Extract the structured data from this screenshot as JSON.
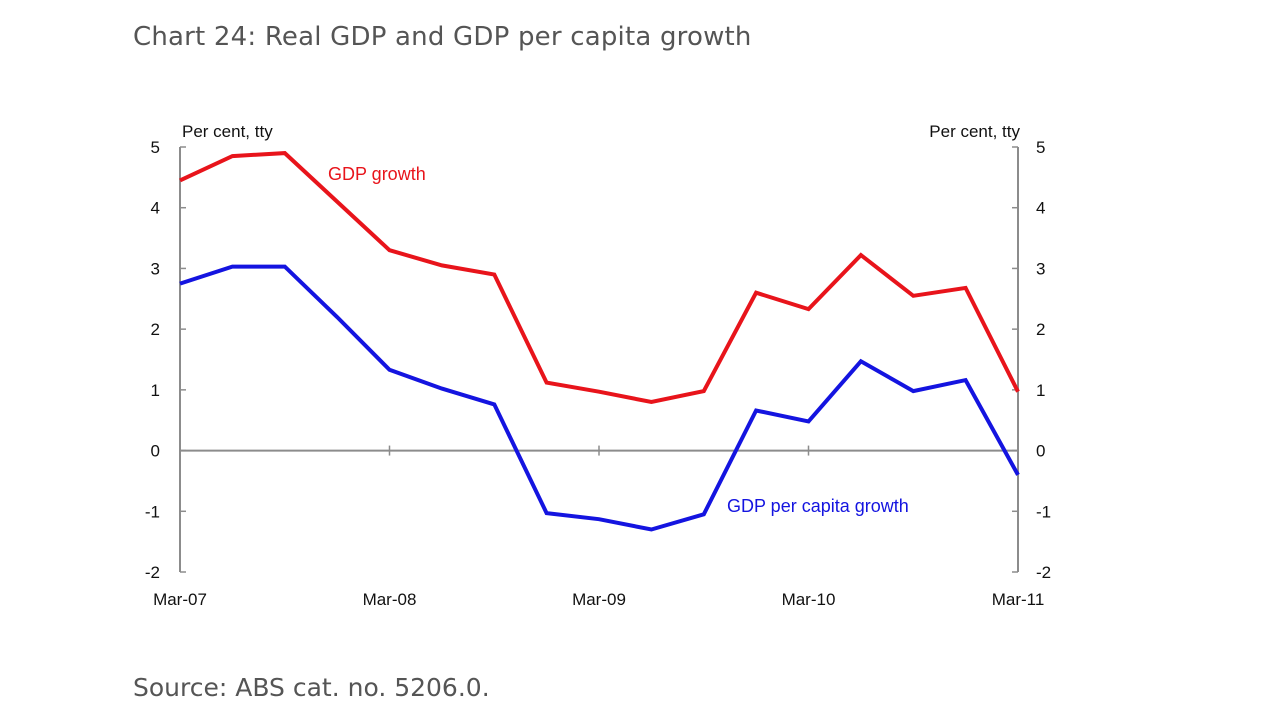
{
  "page": {
    "title": "Chart 24: Real GDP and GDP per capita growth",
    "source": "Source: ABS cat. no. 5206.0."
  },
  "chart_data": {
    "type": "line",
    "title": "Chart 24: Real GDP and GDP per capita growth",
    "ylabel_left": "Per cent, tty",
    "ylabel_right": "Per cent, tty",
    "ylim": [
      -2,
      5
    ],
    "yticks": [
      -2,
      -1,
      0,
      1,
      2,
      3,
      4,
      5
    ],
    "x_tick_labels": [
      "Mar-07",
      "Mar-08",
      "Mar-09",
      "Mar-10",
      "Mar-11"
    ],
    "x": [
      "Mar-07",
      "Jun-07",
      "Sep-07",
      "Dec-07",
      "Mar-08",
      "Jun-08",
      "Sep-08",
      "Dec-08",
      "Mar-09",
      "Jun-09",
      "Sep-09",
      "Dec-09",
      "Mar-10",
      "Jun-10",
      "Sep-10",
      "Dec-10",
      "Mar-11"
    ],
    "series": [
      {
        "name": "GDP growth",
        "color": "#e8141b",
        "values": [
          4.45,
          4.85,
          4.9,
          4.1,
          3.3,
          3.05,
          2.9,
          1.12,
          0.97,
          0.8,
          0.98,
          2.6,
          2.33,
          3.22,
          2.55,
          2.68,
          0.97
        ]
      },
      {
        "name": "GDP per capita growth",
        "color": "#1414e0",
        "values": [
          2.75,
          3.03,
          3.03,
          2.2,
          1.33,
          1.02,
          0.76,
          -1.03,
          -1.13,
          -1.3,
          -1.05,
          0.66,
          0.48,
          1.47,
          0.98,
          1.16,
          -0.4
        ]
      }
    ],
    "annotations": [
      {
        "text": "GDP growth",
        "series": "GDP growth"
      },
      {
        "text": "GDP per capita growth",
        "series": "GDP per capita growth"
      }
    ]
  }
}
